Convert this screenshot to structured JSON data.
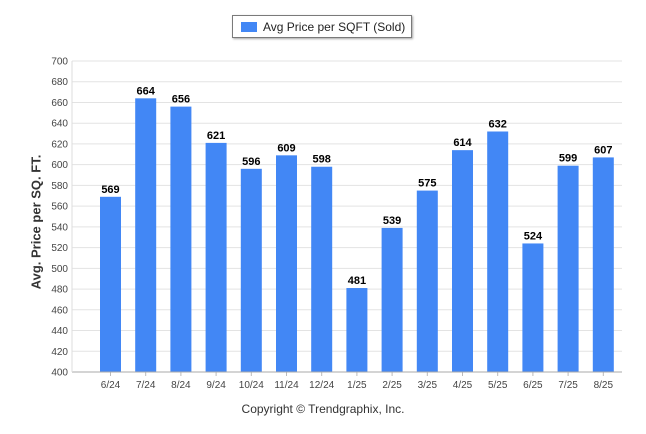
{
  "chart_data": {
    "type": "bar",
    "categories": [
      "6/24",
      "7/24",
      "8/24",
      "9/24",
      "10/24",
      "11/24",
      "12/24",
      "1/25",
      "2/25",
      "3/25",
      "4/25",
      "5/25",
      "6/25",
      "7/25",
      "8/25"
    ],
    "series": [
      {
        "name": "Avg Price per SQFT (Sold)",
        "values": [
          569,
          664,
          656,
          621,
          596,
          609,
          598,
          481,
          539,
          575,
          614,
          632,
          524,
          599,
          607
        ],
        "color": "#4287f5"
      }
    ],
    "ylabel": "Avg. Price per SQ. FT.",
    "xlabel": "",
    "ylim": [
      400,
      700
    ],
    "yticks": [
      400,
      420,
      440,
      460,
      480,
      500,
      520,
      540,
      560,
      580,
      600,
      620,
      640,
      660,
      680,
      700
    ],
    "grid": true,
    "legend_position": "top-center"
  },
  "legend": {
    "label": "Avg Price per SQFT (Sold)"
  },
  "footer": {
    "copyright": "Copyright © Trendgraphix, Inc."
  }
}
